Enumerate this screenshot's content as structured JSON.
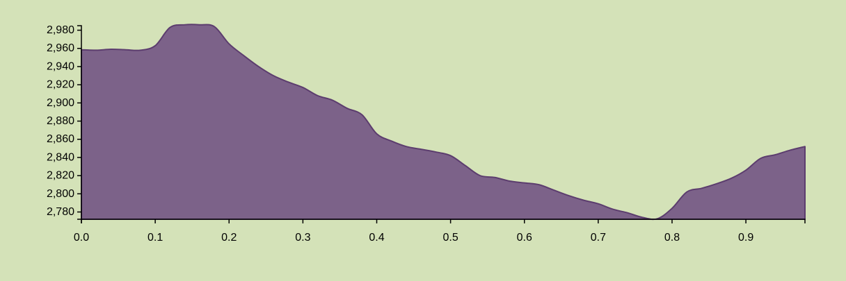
{
  "colors": {
    "background": "#d4e2b8",
    "area_fill": "#7c6289",
    "area_stroke": "#5c3d6e",
    "axis": "#000000"
  },
  "chart_data": {
    "type": "area",
    "title": "",
    "xlabel": "",
    "ylabel": "",
    "grid": false,
    "legend": "none",
    "xlim": [
      0,
      0.98
    ],
    "ylim": [
      2772,
      2985
    ],
    "x_ticks": [
      0.0,
      0.1,
      0.2,
      0.3,
      0.4,
      0.5,
      0.6,
      0.7,
      0.8,
      0.9
    ],
    "x_tick_labels": [
      "0.0",
      "0.1",
      "0.2",
      "0.3",
      "0.4",
      "0.5",
      "0.6",
      "0.7",
      "0.8",
      "0.9"
    ],
    "y_ticks": [
      2780,
      2800,
      2820,
      2840,
      2860,
      2880,
      2900,
      2920,
      2940,
      2960,
      2980
    ],
    "y_tick_labels": [
      "2,780",
      "2,800",
      "2,820",
      "2,840",
      "2,860",
      "2,880",
      "2,900",
      "2,920",
      "2,940",
      "2,960",
      "2,980"
    ],
    "series": [
      {
        "x": [
          0.0,
          0.02,
          0.04,
          0.06,
          0.08,
          0.1,
          0.12,
          0.14,
          0.16,
          0.18,
          0.2,
          0.22,
          0.24,
          0.26,
          0.28,
          0.3,
          0.32,
          0.34,
          0.36,
          0.38,
          0.4,
          0.42,
          0.44,
          0.46,
          0.48,
          0.5,
          0.52,
          0.54,
          0.56,
          0.58,
          0.6,
          0.62,
          0.64,
          0.66,
          0.68,
          0.7,
          0.72,
          0.74,
          0.76,
          0.78,
          0.8,
          0.82,
          0.84,
          0.86,
          0.88,
          0.9,
          0.92,
          0.94,
          0.96,
          0.98
        ],
        "values": [
          2958.5,
          2958,
          2959,
          2958.5,
          2958,
          2963,
          2983,
          2986,
          2986,
          2984,
          2965,
          2952,
          2940,
          2930,
          2923,
          2917,
          2908,
          2903,
          2894,
          2887,
          2866,
          2858,
          2852,
          2849,
          2846,
          2842,
          2831,
          2820,
          2818,
          2814,
          2812,
          2810,
          2804,
          2798,
          2793,
          2789,
          2783,
          2779,
          2774,
          2772.5,
          2784,
          2802,
          2806,
          2811,
          2817,
          2826,
          2839,
          2843,
          2848,
          2852
        ]
      }
    ]
  }
}
